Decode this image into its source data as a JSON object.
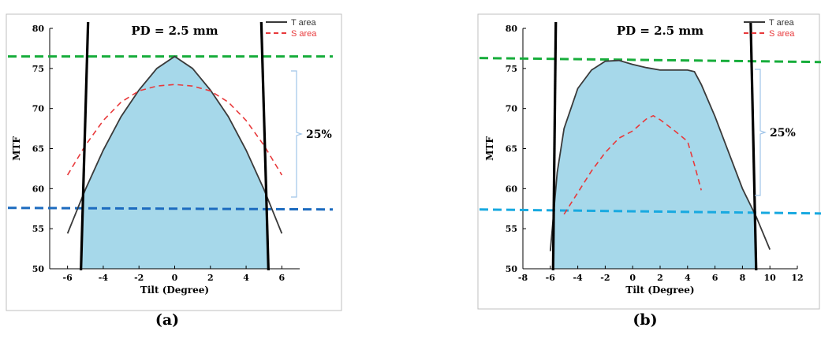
{
  "chart_data": [
    {
      "type": "line",
      "title": "PD = 2.5 mm",
      "xlabel": "Tilt (Degree)",
      "ylabel": "MTF",
      "xlim": [
        -7,
        7
      ],
      "ylim": [
        50,
        80
      ],
      "xticks": [
        -6,
        -4,
        -2,
        0,
        2,
        4,
        6
      ],
      "yticks": [
        50,
        55,
        60,
        65,
        70,
        75,
        80
      ],
      "grid": false,
      "legend_position": "top-right",
      "caption": "(a)",
      "bracket_label": "25%",
      "series": [
        {
          "name": "T area",
          "style": "solid",
          "color": "#3a3a3a",
          "x": [
            -6,
            -5,
            -4,
            -3,
            -2,
            -1,
            0,
            1,
            2,
            3,
            4,
            5,
            6
          ],
          "y": [
            54.4,
            59.9,
            64.8,
            69.0,
            72.3,
            75.0,
            76.5,
            75.0,
            72.3,
            69.0,
            64.8,
            59.9,
            54.4
          ]
        },
        {
          "name": "S area",
          "style": "dashed",
          "color": "#e8393b",
          "x": [
            -6,
            -5,
            -4,
            -3,
            -2,
            -1,
            0,
            1,
            2,
            3,
            4,
            5,
            6
          ],
          "y": [
            61.7,
            65.4,
            68.5,
            70.8,
            72.2,
            72.8,
            73.0,
            72.8,
            72.2,
            70.8,
            68.5,
            65.4,
            61.7
          ]
        }
      ],
      "fill_region": {
        "color": "#a6d8ea",
        "x_range": [
          -5.2,
          5.2
        ]
      },
      "vertical_lines": [
        {
          "x_bottom": -5.25,
          "x_top": -4.85
        },
        {
          "x_bottom": 5.25,
          "x_top": 4.85
        }
      ],
      "reference_lines": [
        {
          "color": "#17ad3b",
          "y_left": 76.5,
          "y_right": 76.5
        },
        {
          "color": "#1c6bbf",
          "y_left": 57.6,
          "y_right": 57.4
        }
      ]
    },
    {
      "type": "line",
      "title": "PD = 2.5 mm",
      "xlabel": "Tilt (Degree)",
      "ylabel": "MTF",
      "xlim": [
        -8,
        12
      ],
      "ylim": [
        50,
        80
      ],
      "xticks": [
        -8,
        -6,
        -4,
        -2,
        0,
        2,
        4,
        6,
        8,
        10,
        12
      ],
      "yticks": [
        50,
        55,
        60,
        65,
        70,
        75,
        80
      ],
      "grid": false,
      "legend_position": "top-right",
      "caption": "(b)",
      "bracket_label": "25%",
      "series": [
        {
          "name": "T area",
          "style": "solid",
          "color": "#3a3a3a",
          "x": [
            -6,
            -5.5,
            -5,
            -4,
            -3,
            -2,
            -1,
            0,
            1,
            2,
            3,
            4,
            4.5,
            5,
            6,
            7,
            8,
            9,
            10
          ],
          "y": [
            52.2,
            62.0,
            67.5,
            72.5,
            74.8,
            75.9,
            76.0,
            75.5,
            75.1,
            74.8,
            74.8,
            74.8,
            74.6,
            73.0,
            69.0,
            64.5,
            60.0,
            56.5,
            52.4
          ]
        },
        {
          "name": "S area",
          "style": "dashed",
          "color": "#e8393b",
          "x": [
            -5,
            -4,
            -3,
            -2,
            -1,
            0,
            1,
            1.5,
            2,
            3,
            4,
            4.5,
            5
          ],
          "y": [
            56.8,
            59.5,
            62.2,
            64.5,
            66.3,
            67.2,
            68.7,
            69.1,
            68.6,
            67.3,
            65.9,
            63.0,
            59.8
          ]
        }
      ],
      "fill_region": {
        "color": "#a6d8ea",
        "x_range": [
          -5.7,
          8.9
        ]
      },
      "vertical_lines": [
        {
          "x_bottom": -5.8,
          "x_top": -5.6
        },
        {
          "x_bottom": 9.0,
          "x_top": 8.6
        }
      ],
      "reference_lines": [
        {
          "color": "#17ad3b",
          "y_left": 76.3,
          "y_right": 75.8
        },
        {
          "color": "#18a9e0",
          "y_left": 57.4,
          "y_right": 56.9
        }
      ]
    }
  ]
}
